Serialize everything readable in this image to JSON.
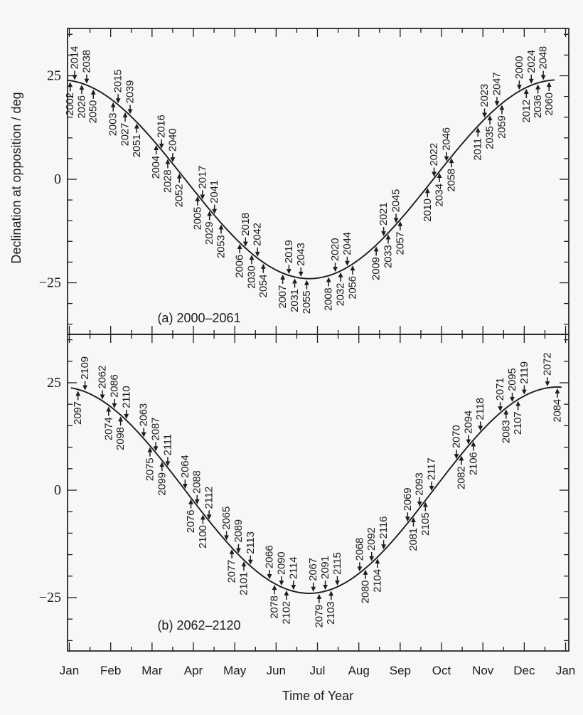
{
  "figure": {
    "background_color": "#f7f7f7",
    "ink_color": "#1d1d1d"
  },
  "axes": {
    "ylabel": "Declination at opposition / deg",
    "xlabel": "Time of Year",
    "month_labels": [
      "Jan",
      "Feb",
      "Mar",
      "Apr",
      "May",
      "Jun",
      "Jul",
      "Aug",
      "Sep",
      "Oct",
      "Nov",
      "Dec",
      "Jan"
    ],
    "y_major_ticks": [
      25,
      0,
      -25
    ],
    "y_tick_labels": [
      "25",
      "0",
      "−25"
    ],
    "y_minor_step_deg": 5,
    "x_minor_step_months": 0.5
  },
  "chart_data": [
    {
      "type": "line",
      "title": "(a) 2000–2061",
      "caption": "(a) 2000–2061",
      "xlabel": "Time of Year",
      "ylabel": "Declination at opposition / deg",
      "x_tick_labels": [
        "Jan",
        "Feb",
        "Mar",
        "Apr",
        "May",
        "Jun",
        "Jul",
        "Aug",
        "Sep",
        "Oct",
        "Nov",
        "Dec",
        "Jan"
      ],
      "y_tick_labels": [
        "25",
        "0",
        "−25"
      ],
      "x_range_months": [
        0,
        12
      ],
      "ylim_deg": [
        -37,
        36
      ],
      "grid": false,
      "curve": {
        "description": "declination of the opposition point through the year",
        "amplitude_deg": 24.0,
        "peak_month": 11.8,
        "x_start_month": -0.04,
        "x_end_month": 11.72
      },
      "labels_above_curve": [
        {
          "year": "2014",
          "month": 0.13
        },
        {
          "year": "2038",
          "month": 0.42
        },
        {
          "year": "2015",
          "month": 1.18
        },
        {
          "year": "2039",
          "month": 1.47
        },
        {
          "year": "2016",
          "month": 2.23
        },
        {
          "year": "2040",
          "month": 2.5
        },
        {
          "year": "2017",
          "month": 3.22
        },
        {
          "year": "2041",
          "month": 3.51
        },
        {
          "year": "2018",
          "month": 4.26
        },
        {
          "year": "2042",
          "month": 4.55
        },
        {
          "year": "2019",
          "month": 5.31
        },
        {
          "year": "2043",
          "month": 5.6
        },
        {
          "year": "2020",
          "month": 6.43
        },
        {
          "year": "2044",
          "month": 6.72
        },
        {
          "year": "2021",
          "month": 7.6
        },
        {
          "year": "2045",
          "month": 7.9
        },
        {
          "year": "2022",
          "month": 8.82
        },
        {
          "year": "2046",
          "month": 9.12
        },
        {
          "year": "2023",
          "month": 10.04
        },
        {
          "year": "2047",
          "month": 10.34
        },
        {
          "year": "2000",
          "month": 10.88
        },
        {
          "year": "2024",
          "month": 11.17
        },
        {
          "year": "2048",
          "month": 11.46
        }
      ],
      "labels_below_curve": [
        {
          "year": "2002",
          "month": 0.02
        },
        {
          "year": "2026",
          "month": 0.3
        },
        {
          "year": "2050",
          "month": 0.58
        },
        {
          "year": "2003",
          "month": 1.06
        },
        {
          "year": "2027",
          "month": 1.35
        },
        {
          "year": "2051",
          "month": 1.63
        },
        {
          "year": "2004",
          "month": 2.1
        },
        {
          "year": "2028",
          "month": 2.38
        },
        {
          "year": "2052",
          "month": 2.66
        },
        {
          "year": "2005",
          "month": 3.1
        },
        {
          "year": "2029",
          "month": 3.39
        },
        {
          "year": "2053",
          "month": 3.67
        },
        {
          "year": "2006",
          "month": 4.12
        },
        {
          "year": "2030",
          "month": 4.41
        },
        {
          "year": "2054",
          "month": 4.69
        },
        {
          "year": "2007",
          "month": 5.16
        },
        {
          "year": "2031",
          "month": 5.45
        },
        {
          "year": "2055",
          "month": 5.74
        },
        {
          "year": "2008",
          "month": 6.27
        },
        {
          "year": "2032",
          "month": 6.56
        },
        {
          "year": "2056",
          "month": 6.85
        },
        {
          "year": "2009",
          "month": 7.42
        },
        {
          "year": "2033",
          "month": 7.71
        },
        {
          "year": "2057",
          "month": 8.0
        },
        {
          "year": "2010",
          "month": 8.66
        },
        {
          "year": "2034",
          "month": 8.95
        },
        {
          "year": "2058",
          "month": 9.24
        },
        {
          "year": "2011",
          "month": 9.88
        },
        {
          "year": "2035",
          "month": 10.17
        },
        {
          "year": "2059",
          "month": 10.46
        },
        {
          "year": "2012",
          "month": 11.05
        },
        {
          "year": "2036",
          "month": 11.33
        },
        {
          "year": "2060",
          "month": 11.6
        }
      ]
    },
    {
      "type": "line",
      "title": "(b) 2062–2120",
      "caption": "(b) 2062–2120",
      "xlabel": "Time of Year",
      "ylabel": "Declination at opposition / deg",
      "x_tick_labels": [
        "Jan",
        "Feb",
        "Mar",
        "Apr",
        "May",
        "Jun",
        "Jul",
        "Aug",
        "Sep",
        "Oct",
        "Nov",
        "Dec",
        "Jan"
      ],
      "y_tick_labels": [
        "25",
        "0",
        "−25"
      ],
      "x_range_months": [
        0,
        12
      ],
      "ylim_deg": [
        -37,
        36
      ],
      "grid": false,
      "curve": {
        "description": "declination of the opposition point through the year",
        "amplitude_deg": 24.0,
        "peak_month": 11.8,
        "x_start_month": 0.05,
        "x_end_month": 11.94
      },
      "labels_above_curve": [
        {
          "year": "2109",
          "month": 0.38
        },
        {
          "year": "2062",
          "month": 0.8
        },
        {
          "year": "2086",
          "month": 1.09
        },
        {
          "year": "2110",
          "month": 1.38
        },
        {
          "year": "2063",
          "month": 1.8
        },
        {
          "year": "2087",
          "month": 2.09
        },
        {
          "year": "2111",
          "month": 2.38
        },
        {
          "year": "2064",
          "month": 2.8
        },
        {
          "year": "2088",
          "month": 3.09
        },
        {
          "year": "2112",
          "month": 3.38
        },
        {
          "year": "2065",
          "month": 3.8
        },
        {
          "year": "2089",
          "month": 4.09
        },
        {
          "year": "2113",
          "month": 4.38
        },
        {
          "year": "2066",
          "month": 4.84
        },
        {
          "year": "2090",
          "month": 5.13
        },
        {
          "year": "2114",
          "month": 5.42
        },
        {
          "year": "2067",
          "month": 5.9
        },
        {
          "year": "2091",
          "month": 6.19
        },
        {
          "year": "2115",
          "month": 6.48
        },
        {
          "year": "2068",
          "month": 7.02
        },
        {
          "year": "2092",
          "month": 7.31
        },
        {
          "year": "2116",
          "month": 7.6
        },
        {
          "year": "2069",
          "month": 8.18
        },
        {
          "year": "2093",
          "month": 8.47
        },
        {
          "year": "2117",
          "month": 8.76
        },
        {
          "year": "2070",
          "month": 9.36
        },
        {
          "year": "2094",
          "month": 9.65
        },
        {
          "year": "2118",
          "month": 9.94
        },
        {
          "year": "2071",
          "month": 10.42
        },
        {
          "year": "2095",
          "month": 10.71
        },
        {
          "year": "2119",
          "month": 11.0
        },
        {
          "year": "2072",
          "month": 11.56
        }
      ],
      "labels_below_curve": [
        {
          "year": "2097",
          "month": 0.21
        },
        {
          "year": "2074",
          "month": 0.95
        },
        {
          "year": "2098",
          "month": 1.24
        },
        {
          "year": "2075",
          "month": 1.95
        },
        {
          "year": "2099",
          "month": 2.24
        },
        {
          "year": "2076",
          "month": 2.94
        },
        {
          "year": "2100",
          "month": 3.23
        },
        {
          "year": "2077",
          "month": 3.93
        },
        {
          "year": "2101",
          "month": 4.22
        },
        {
          "year": "2078",
          "month": 4.96
        },
        {
          "year": "2102",
          "month": 5.25
        },
        {
          "year": "2079",
          "month": 6.04
        },
        {
          "year": "2103",
          "month": 6.33
        },
        {
          "year": "2080",
          "month": 7.16
        },
        {
          "year": "2104",
          "month": 7.45
        },
        {
          "year": "2081",
          "month": 8.32
        },
        {
          "year": "2105",
          "month": 8.61
        },
        {
          "year": "2082",
          "month": 9.48
        },
        {
          "year": "2106",
          "month": 9.77
        },
        {
          "year": "2083",
          "month": 10.56
        },
        {
          "year": "2107",
          "month": 10.85
        },
        {
          "year": "2084",
          "month": 11.8
        }
      ]
    }
  ]
}
